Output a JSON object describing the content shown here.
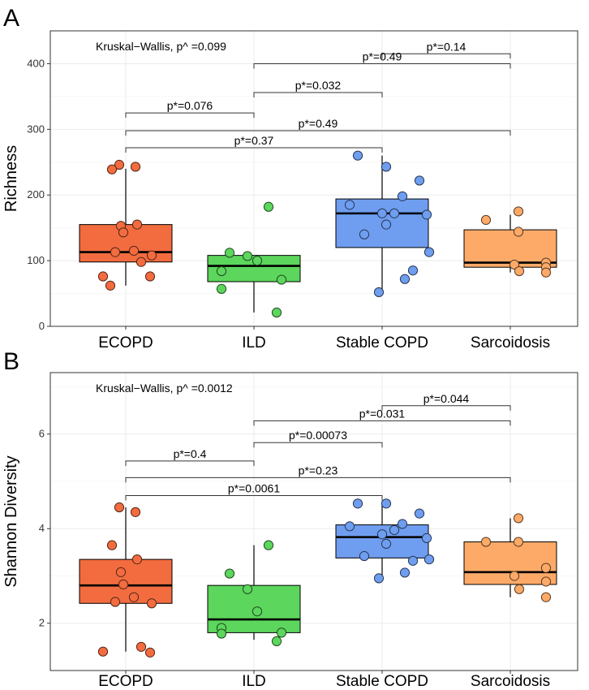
{
  "chart_data": [
    {
      "panel": "A",
      "type": "box",
      "ylabel": "Richness",
      "ylim": [
        0,
        450
      ],
      "yticks": [
        0,
        100,
        200,
        300,
        400
      ],
      "grid": true,
      "categories": [
        "ECOPD",
        "ILD",
        "Stable COPD",
        "Sarcoidosis"
      ],
      "colors": [
        "#f26c3f",
        "#5cd65c",
        "#6f9ef0",
        "#fdaa68"
      ],
      "annotation": "Kruskal−Wallis, p^ =0.099",
      "boxes": [
        {
          "min": 62,
          "q1": 98,
          "median": 113,
          "q3": 155,
          "max": 240
        },
        {
          "min": 21,
          "q1": 68,
          "median": 92,
          "q3": 108,
          "max": 108
        },
        {
          "min": 52,
          "q1": 120,
          "median": 172,
          "q3": 194,
          "max": 260
        },
        {
          "min": 82,
          "q1": 90,
          "median": 97,
          "q3": 147,
          "max": 170
        }
      ],
      "points": [
        [
          246,
          243,
          239,
          155,
          153,
          143,
          115,
          113,
          108,
          98,
          76,
          76,
          62
        ],
        [
          182,
          112,
          107,
          100,
          84,
          71,
          57,
          21
        ],
        [
          260,
          243,
          222,
          198,
          185,
          172,
          172,
          170,
          155,
          140,
          113,
          85,
          72,
          52
        ],
        [
          175,
          162,
          144,
          97,
          94,
          90,
          84,
          82
        ]
      ],
      "comparisons": [
        {
          "from": 2,
          "to": 3,
          "label": "p*=0.14"
        },
        {
          "from": 1,
          "to": 3,
          "label": "p*=0.49"
        },
        {
          "from": 1,
          "to": 2,
          "label": "p*=0.032"
        },
        {
          "from": 0,
          "to": 1,
          "label": "p*=0.076"
        },
        {
          "from": 0,
          "to": 3,
          "label": "p*=0.49"
        },
        {
          "from": 0,
          "to": 2,
          "label": "p*=0.37"
        }
      ],
      "bracket_y": [
        415,
        400,
        356,
        325,
        298,
        272
      ]
    },
    {
      "panel": "B",
      "type": "box",
      "ylabel": "Shannon Diversity",
      "ylim": [
        1.0,
        7.3
      ],
      "yticks": [
        2,
        4,
        6
      ],
      "grid": true,
      "categories": [
        "ECOPD",
        "ILD",
        "Stable COPD",
        "Sarcoidosis"
      ],
      "colors": [
        "#f26c3f",
        "#5cd65c",
        "#6f9ef0",
        "#fdaa68"
      ],
      "annotation": "Kruskal−Wallis, p^ =0.0012",
      "boxes": [
        {
          "min": 1.4,
          "q1": 2.42,
          "median": 2.8,
          "q3": 3.35,
          "max": 4.45
        },
        {
          "min": 1.65,
          "q1": 1.8,
          "median": 2.08,
          "q3": 2.8,
          "max": 3.65
        },
        {
          "min": 2.95,
          "q1": 3.38,
          "median": 3.82,
          "q3": 4.08,
          "max": 4.55
        },
        {
          "min": 2.55,
          "q1": 2.82,
          "median": 3.08,
          "q3": 3.72,
          "max": 4.22
        }
      ],
      "points": [
        [
          4.45,
          4.35,
          3.65,
          3.35,
          3.08,
          2.82,
          2.55,
          2.45,
          2.42,
          1.5,
          1.4,
          1.38
        ],
        [
          3.65,
          3.05,
          2.72,
          2.25,
          1.9,
          1.8,
          1.78,
          1.62
        ],
        [
          4.53,
          4.53,
          4.32,
          4.1,
          4.05,
          3.97,
          3.88,
          3.8,
          3.68,
          3.42,
          3.35,
          3.32,
          3.07,
          2.95
        ],
        [
          4.22,
          3.72,
          3.72,
          3.17,
          3.0,
          2.88,
          2.72,
          2.55
        ]
      ],
      "comparisons": [
        {
          "from": 2,
          "to": 3,
          "label": "p*=0.044"
        },
        {
          "from": 1,
          "to": 3,
          "label": "p*=0.031"
        },
        {
          "from": 1,
          "to": 2,
          "label": "p*=0.00073"
        },
        {
          "from": 0,
          "to": 1,
          "label": "p*=0.4"
        },
        {
          "from": 0,
          "to": 3,
          "label": "p*=0.23"
        },
        {
          "from": 0,
          "to": 2,
          "label": "p*=0.0061"
        }
      ],
      "bracket_y": [
        6.6,
        6.28,
        5.82,
        5.43,
        5.08,
        4.7
      ]
    }
  ]
}
